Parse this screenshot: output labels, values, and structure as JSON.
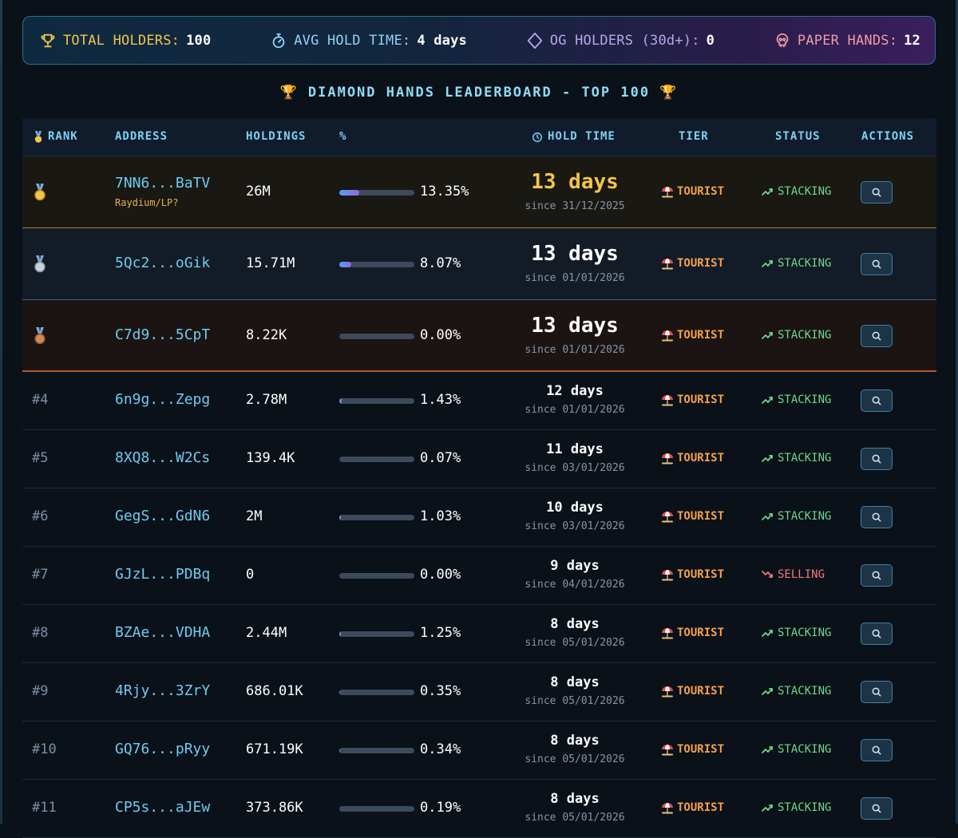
{
  "stats": {
    "total_holders_label": "TOTAL HOLDERS:",
    "total_holders_value": "100",
    "avg_hold_label": "AVG HOLD TIME:",
    "avg_hold_value": "4 days",
    "og_label": "OG HOLDERS (30d+):",
    "og_value": "0",
    "paper_label": "PAPER HANDS:",
    "paper_value": "12"
  },
  "board": {
    "trophy_left": "🏆",
    "title": "DIAMOND HANDS LEADERBOARD - TOP 100",
    "trophy_right": "🏆"
  },
  "columns": {
    "rank": "RANK",
    "address": "ADDRESS",
    "holdings": "HOLDINGS",
    "percent": "%",
    "hold_time": "HOLD TIME",
    "tier": "TIER",
    "status": "STATUS",
    "actions": "ACTIONS"
  },
  "rows": [
    {
      "rank": "1",
      "medal": "gold",
      "address": "7NN6...BaTV",
      "tag": "Raydium/LP?",
      "holdings": "26M",
      "percent": "13.35%",
      "share": 0.1335,
      "hold_time": "13 days",
      "since": "since 31/12/2025",
      "tier": "TOURIST",
      "status": "STACKING"
    },
    {
      "rank": "2",
      "medal": "silver",
      "address": "5Qc2...oGik",
      "holdings": "15.71M",
      "percent": "8.07%",
      "share": 0.0807,
      "hold_time": "13 days",
      "since": "since 01/01/2026",
      "tier": "TOURIST",
      "status": "STACKING"
    },
    {
      "rank": "3",
      "medal": "bronze",
      "address": "C7d9...5CpT",
      "holdings": "8.22K",
      "percent": "0.00%",
      "share": 0,
      "hold_time": "13 days",
      "since": "since 01/01/2026",
      "tier": "TOURIST",
      "status": "STACKING"
    },
    {
      "rank": "#4",
      "address": "6n9g...Zepg",
      "holdings": "2.78M",
      "percent": "1.43%",
      "share": 0.0143,
      "hold_time": "12 days",
      "since": "since 01/01/2026",
      "tier": "TOURIST",
      "status": "STACKING"
    },
    {
      "rank": "#5",
      "address": "8XQ8...W2Cs",
      "holdings": "139.4K",
      "percent": "0.07%",
      "share": 0.0007,
      "hold_time": "11 days",
      "since": "since 03/01/2026",
      "tier": "TOURIST",
      "status": "STACKING"
    },
    {
      "rank": "#6",
      "address": "GegS...GdN6",
      "holdings": "2M",
      "percent": "1.03%",
      "share": 0.0103,
      "hold_time": "10 days",
      "since": "since 03/01/2026",
      "tier": "TOURIST",
      "status": "STACKING"
    },
    {
      "rank": "#7",
      "address": "GJzL...PDBq",
      "holdings": "0",
      "percent": "0.00%",
      "share": 0,
      "hold_time": "9 days",
      "since": "since 04/01/2026",
      "tier": "TOURIST",
      "status": "SELLING"
    },
    {
      "rank": "#8",
      "address": "BZAe...VDHA",
      "holdings": "2.44M",
      "percent": "1.25%",
      "share": 0.0125,
      "hold_time": "8 days",
      "since": "since 05/01/2026",
      "tier": "TOURIST",
      "status": "STACKING"
    },
    {
      "rank": "#9",
      "address": "4Rjy...3ZrY",
      "holdings": "686.01K",
      "percent": "0.35%",
      "share": 0.0035,
      "hold_time": "8 days",
      "since": "since 05/01/2026",
      "tier": "TOURIST",
      "status": "STACKING"
    },
    {
      "rank": "#10",
      "address": "GQ76...pRyy",
      "holdings": "671.19K",
      "percent": "0.34%",
      "share": 0.0034,
      "hold_time": "8 days",
      "since": "since 05/01/2026",
      "tier": "TOURIST",
      "status": "STACKING"
    },
    {
      "rank": "#11",
      "address": "CP5s...aJEw",
      "holdings": "373.86K",
      "percent": "0.19%",
      "share": 0.0019,
      "hold_time": "8 days",
      "since": "since 05/01/2026",
      "tier": "TOURIST",
      "status": "STACKING"
    }
  ],
  "colors": {
    "gold": "#f2c54b",
    "accent_cyan": "#7fd0f2",
    "tier_orange": "#f3a04c",
    "stacking_green": "#6fd68a",
    "selling_red": "#f0787f"
  },
  "icons": {
    "holders": "trophy-icon",
    "avg_hold": "stopwatch-icon",
    "og": "diamond-icon",
    "paper": "skull-icon",
    "hold_time_header": "clock-icon",
    "tier": "beach-umbrella-icon",
    "stacking": "trend-up-icon",
    "selling": "trend-down-icon",
    "action": "search-icon",
    "rank_header": "medal-icon"
  }
}
